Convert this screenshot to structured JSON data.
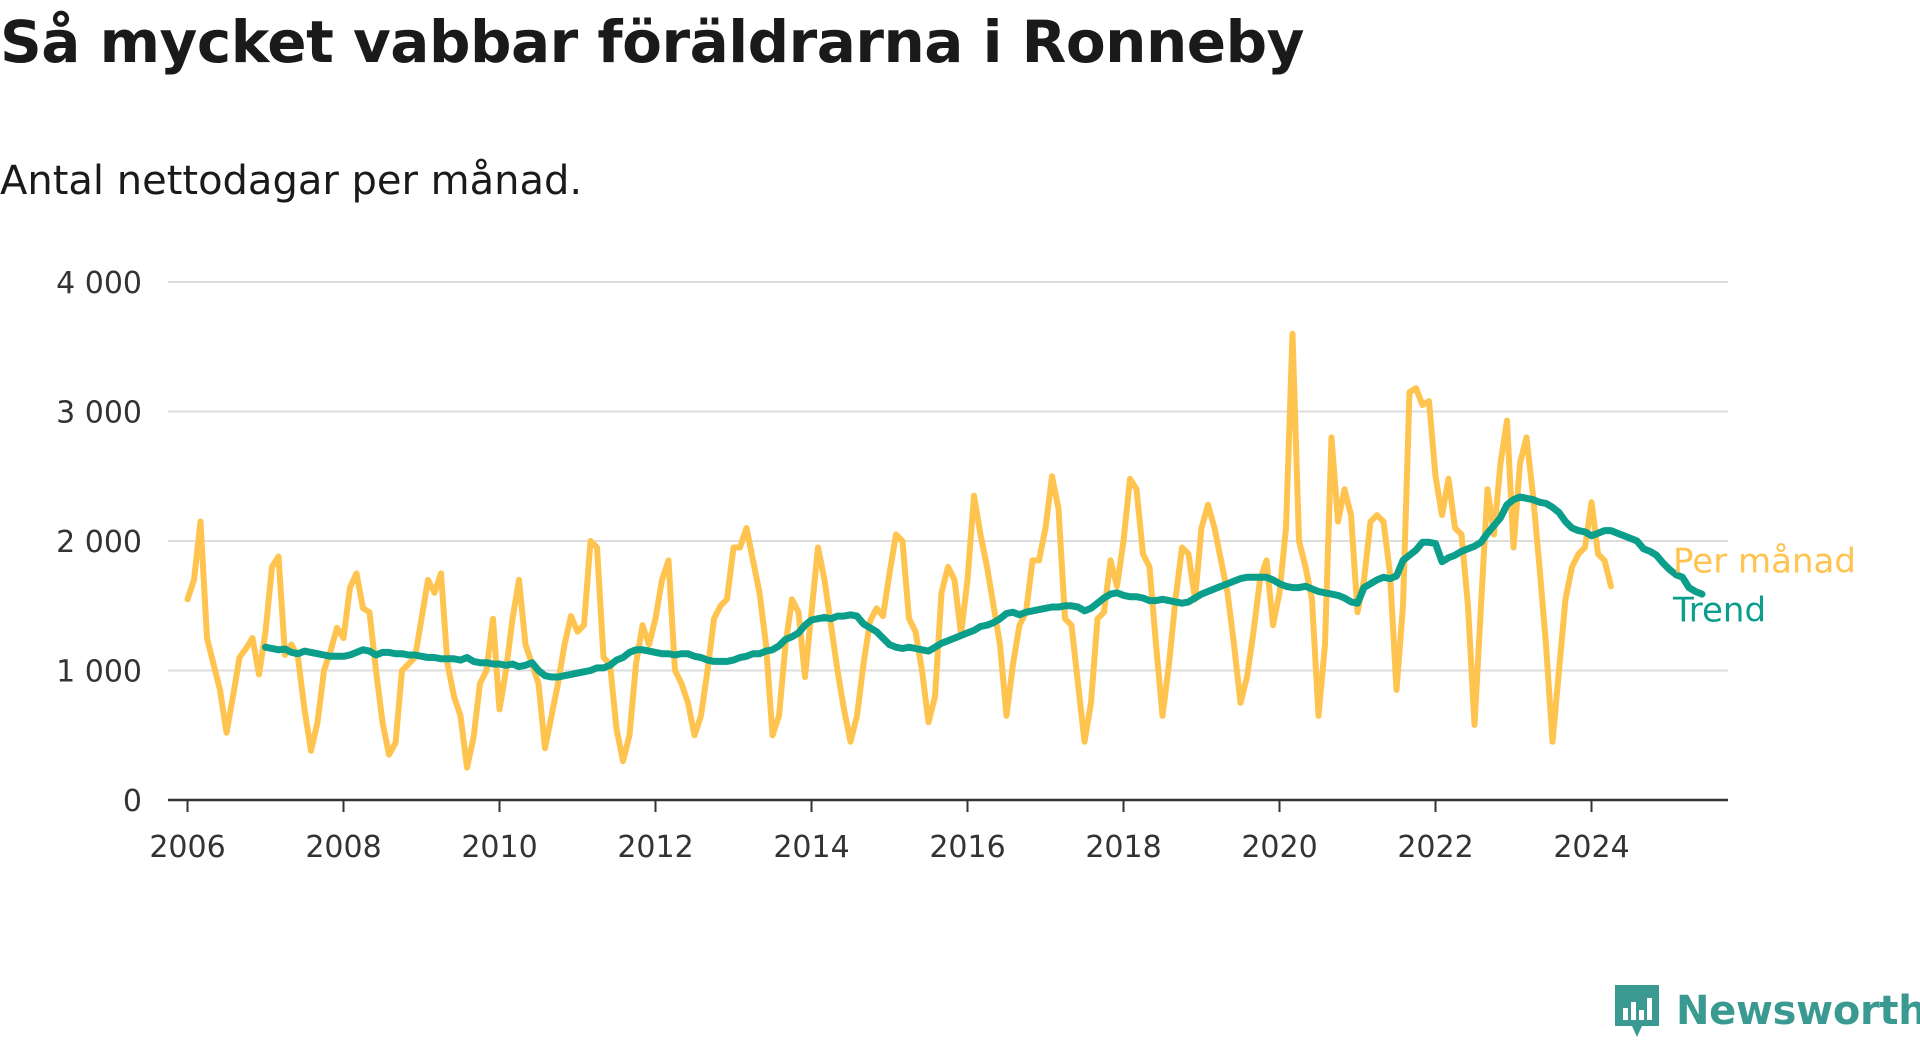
{
  "title": "Så mycket vabbar föräldrarna i Ronneby",
  "subtitle": "Antal nettodagar per månad.",
  "brand": {
    "name": "Newsworthy",
    "icon": "newsworthy-logo-icon"
  },
  "colors": {
    "monthly": "#FEC44F",
    "trend": "#0B9E8B",
    "grid": "#DDDDDD",
    "axis": "#333333",
    "brand": "#3A9A92"
  },
  "chart_data": {
    "type": "line",
    "title": "Så mycket vabbar föräldrarna i Ronneby",
    "subtitle": "Antal nettodagar per månad.",
    "xlabel": "",
    "ylabel": "",
    "xlim": [
      2005.75,
      2025.75
    ],
    "ylim": [
      0,
      4000
    ],
    "yticks": [
      0,
      1000,
      2000,
      3000,
      4000
    ],
    "ytick_labels": [
      "0",
      "1 000",
      "2 000",
      "3 000",
      "4 000"
    ],
    "xticks": [
      2006,
      2008,
      2010,
      2012,
      2014,
      2016,
      2018,
      2020,
      2022,
      2024
    ],
    "xtick_labels": [
      "2006",
      "2008",
      "2010",
      "2012",
      "2014",
      "2016",
      "2018",
      "2020",
      "2022",
      "2024"
    ],
    "grid": true,
    "legend_position": "right-end-of-lines",
    "series": [
      {
        "name": "Per månad",
        "color": "#FEC44F",
        "start": "2006-01",
        "values": [
          1550,
          1700,
          2150,
          1250,
          1050,
          850,
          520,
          800,
          1100,
          1170,
          1250,
          970,
          1300,
          1800,
          1880,
          1120,
          1200,
          1100,
          700,
          380,
          600,
          1000,
          1150,
          1330,
          1250,
          1640,
          1750,
          1480,
          1450,
          1000,
          600,
          350,
          440,
          1000,
          1050,
          1100,
          1400,
          1700,
          1600,
          1750,
          1050,
          800,
          650,
          250,
          480,
          900,
          1000,
          1400,
          700,
          1000,
          1400,
          1700,
          1200,
          1050,
          900,
          400,
          650,
          900,
          1200,
          1420,
          1300,
          1350,
          2000,
          1950,
          1100,
          1050,
          550,
          300,
          500,
          1050,
          1350,
          1200,
          1400,
          1700,
          1850,
          1000,
          900,
          750,
          500,
          650,
          1000,
          1400,
          1500,
          1550,
          1950,
          1950,
          2100,
          1850,
          1600,
          1200,
          500,
          650,
          1200,
          1550,
          1450,
          950,
          1450,
          1950,
          1700,
          1350,
          1000,
          700,
          450,
          650,
          1050,
          1380,
          1480,
          1420,
          1750,
          2050,
          2000,
          1400,
          1300,
          1000,
          600,
          800,
          1600,
          1800,
          1700,
          1280,
          1700,
          2350,
          2050,
          1800,
          1500,
          1200,
          650,
          1050,
          1350,
          1450,
          1850,
          1850,
          2100,
          2500,
          2250,
          1400,
          1350,
          900,
          450,
          750,
          1400,
          1450,
          1850,
          1650,
          2000,
          2480,
          2400,
          1900,
          1800,
          1200,
          650,
          1050,
          1550,
          1950,
          1900,
          1550,
          2100,
          2280,
          2100,
          1850,
          1600,
          1200,
          750,
          950,
          1300,
          1700,
          1850,
          1350,
          1600,
          2100,
          3600,
          2000,
          1800,
          1550,
          650,
          1200,
          2800,
          2150,
          2400,
          2200,
          1450,
          1700,
          2150,
          2200,
          2150,
          1750,
          850,
          1500,
          3150,
          3180,
          3050,
          3080,
          2500,
          2200,
          2480,
          2100,
          2050,
          1500,
          580,
          1500,
          2400,
          2050,
          2600,
          2930,
          1950,
          2600,
          2800,
          2350,
          1800,
          1200,
          450,
          1000,
          1550,
          1800,
          1900,
          1950,
          2300,
          1900,
          1850,
          1650
        ]
      },
      {
        "name": "Trend",
        "color": "#0B9E8B",
        "start": "2007-01",
        "values": [
          1180,
          1170,
          1160,
          1165,
          1140,
          1130,
          1150,
          1140,
          1130,
          1120,
          1110,
          1110,
          1110,
          1120,
          1140,
          1160,
          1150,
          1120,
          1140,
          1140,
          1130,
          1130,
          1120,
          1120,
          1110,
          1100,
          1100,
          1090,
          1090,
          1090,
          1080,
          1100,
          1070,
          1060,
          1060,
          1050,
          1050,
          1040,
          1050,
          1030,
          1040,
          1060,
          1000,
          960,
          950,
          950,
          960,
          970,
          980,
          990,
          1000,
          1020,
          1020,
          1040,
          1080,
          1100,
          1140,
          1160,
          1160,
          1150,
          1140,
          1130,
          1130,
          1120,
          1130,
          1130,
          1110,
          1100,
          1080,
          1070,
          1070,
          1070,
          1080,
          1100,
          1110,
          1130,
          1130,
          1150,
          1160,
          1190,
          1240,
          1260,
          1290,
          1350,
          1390,
          1400,
          1410,
          1400,
          1420,
          1420,
          1430,
          1420,
          1360,
          1330,
          1300,
          1250,
          1200,
          1180,
          1170,
          1180,
          1170,
          1160,
          1150,
          1180,
          1210,
          1230,
          1250,
          1270,
          1290,
          1310,
          1340,
          1350,
          1370,
          1400,
          1440,
          1450,
          1430,
          1450,
          1460,
          1470,
          1480,
          1490,
          1490,
          1500,
          1500,
          1490,
          1460,
          1480,
          1520,
          1560,
          1590,
          1600,
          1580,
          1570,
          1570,
          1560,
          1540,
          1540,
          1550,
          1540,
          1530,
          1520,
          1530,
          1560,
          1590,
          1610,
          1630,
          1650,
          1670,
          1690,
          1710,
          1720,
          1720,
          1720,
          1720,
          1700,
          1670,
          1650,
          1640,
          1640,
          1650,
          1630,
          1610,
          1600,
          1590,
          1580,
          1560,
          1530,
          1520,
          1640,
          1670,
          1700,
          1720,
          1710,
          1730,
          1850,
          1890,
          1930,
          1990,
          1990,
          1980,
          1840,
          1870,
          1890,
          1920,
          1940,
          1960,
          1990,
          2060,
          2120,
          2180,
          2280,
          2320,
          2340,
          2330,
          2320,
          2300,
          2290,
          2260,
          2220,
          2150,
          2100,
          2080,
          2070,
          2040,
          2060,
          2080,
          2080,
          2060,
          2040,
          2020,
          2000,
          1940,
          1920,
          1890,
          1830,
          1780,
          1740,
          1720,
          1640,
          1610,
          1590
        ]
      }
    ]
  }
}
